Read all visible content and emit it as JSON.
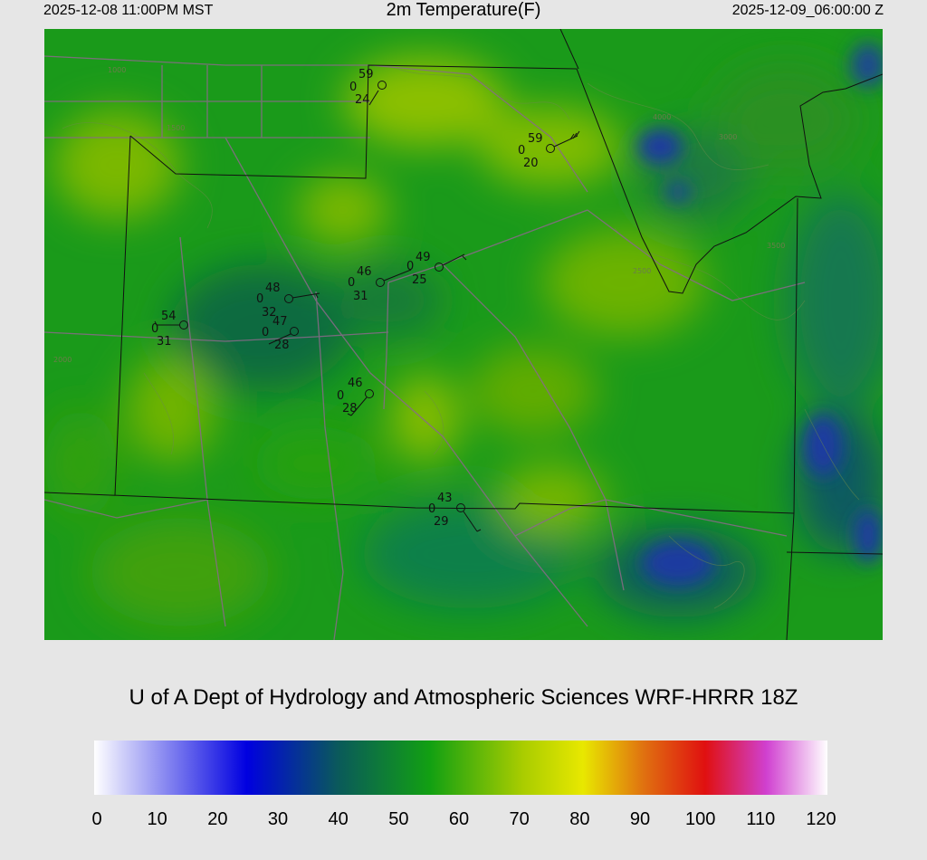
{
  "header": {
    "local_time": "2025-12-08 11:00PM MST",
    "title": "2m Temperature(F)",
    "valid_time": "2025-12-09_06:00:00 Z"
  },
  "credit": "U of A Dept of Hydrology and Atmospheric Sciences WRF-HRRR 18Z",
  "colorbar": {
    "unit": "F",
    "range": [
      0,
      120
    ],
    "ticks": [
      "0",
      "10",
      "20",
      "30",
      "40",
      "50",
      "60",
      "70",
      "80",
      "90",
      "100",
      "110",
      "120"
    ],
    "stops": [
      {
        "v": 0,
        "color": "#ffffff"
      },
      {
        "v": 25,
        "color": "#0000e0"
      },
      {
        "v": 40,
        "color": "#0a5a5a"
      },
      {
        "v": 55,
        "color": "#12a012"
      },
      {
        "v": 70,
        "color": "#a8cc00"
      },
      {
        "v": 80,
        "color": "#e8e800"
      },
      {
        "v": 90,
        "color": "#e07010"
      },
      {
        "v": 100,
        "color": "#e01010"
      },
      {
        "v": 110,
        "color": "#d040d0"
      },
      {
        "v": 120,
        "color": "#ffffff"
      }
    ]
  },
  "stations": [
    {
      "temp": "59",
      "wind": "0",
      "dew": "24"
    },
    {
      "temp": "59",
      "wind": "0",
      "dew": "20"
    },
    {
      "temp": "49",
      "wind": "0",
      "dew": "25"
    },
    {
      "temp": "46",
      "wind": "0",
      "dew": "31"
    },
    {
      "temp": "48",
      "wind": "0",
      "dew": "32"
    },
    {
      "temp": "47",
      "wind": "0",
      "dew": "28"
    },
    {
      "temp": "54",
      "wind": "0",
      "dew": "31"
    },
    {
      "temp": "46",
      "wind": "0",
      "dew": "28"
    },
    {
      "temp": "43",
      "wind": "0",
      "dew": "29"
    }
  ],
  "contour_labels": [
    "1000",
    "1500",
    "2000",
    "2500",
    "3000",
    "3500",
    "4000"
  ]
}
